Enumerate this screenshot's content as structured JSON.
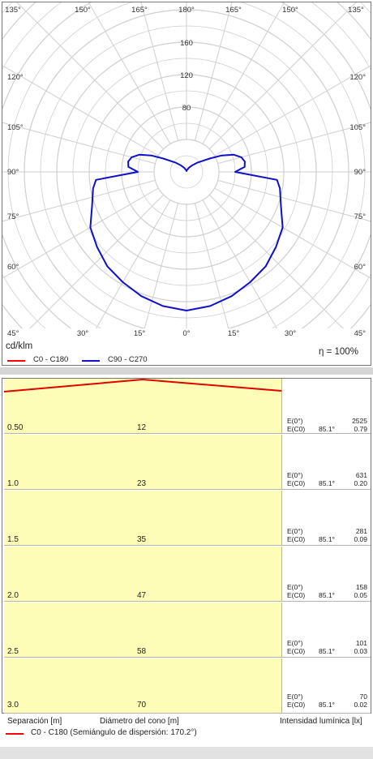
{
  "chart_data": [
    {
      "type": "polar",
      "unit_label": "cd/klm",
      "efficiency_label": "η = 100%",
      "angle_labels_top": [
        "135°",
        "150°",
        "165°",
        "180°",
        "165°",
        "150°",
        "135°"
      ],
      "angle_labels_left": [
        "120°",
        "105°",
        "90°",
        "75°",
        "60°",
        "45°"
      ],
      "angle_labels_right": [
        "120°",
        "105°",
        "90°",
        "75°",
        "60°",
        "45°"
      ],
      "angle_labels_bottom": [
        "30°",
        "15°",
        "0°",
        "15°",
        "30°"
      ],
      "radial_ticks": [
        "160",
        "120",
        "80"
      ],
      "rmax": 200,
      "legend_visible": [
        "C0 - C180",
        "C90 - C270"
      ],
      "series": [
        {
          "name": "C0 - C180",
          "color": "#ff0000",
          "angles_deg": [
            0,
            10,
            20,
            30,
            40,
            50,
            60,
            70,
            80,
            85,
            90,
            95,
            100,
            110,
            120,
            130,
            140,
            150,
            160,
            170,
            180
          ],
          "values": [
            0,
            0,
            0,
            0,
            0,
            0,
            0,
            0,
            0,
            0,
            0,
            0,
            0,
            0,
            0,
            0,
            0,
            0,
            0,
            0,
            0
          ]
        },
        {
          "name": "C90 - C270",
          "color": "#1010c8",
          "angles_deg": [
            0,
            10,
            20,
            30,
            40,
            50,
            60,
            70,
            80,
            85,
            90,
            95,
            100,
            105,
            110,
            115,
            120,
            130,
            140,
            150,
            160,
            170,
            180
          ],
          "values": [
            171,
            168,
            163,
            157,
            152,
            144,
            137,
            124,
            117,
            112,
            60,
            72,
            73,
            70,
            62,
            48,
            33,
            18,
            10,
            6,
            3,
            2,
            1
          ]
        }
      ]
    },
    {
      "type": "table",
      "rows": [
        {
          "separation": "0.50",
          "diameter": "12",
          "e0_label": "E(0°)",
          "ec0_label": "E(C0)",
          "angle": "85.1°",
          "e0_value": "2525",
          "ec0_value": "0.79"
        },
        {
          "separation": "1.0",
          "diameter": "23",
          "e0_label": "E(0°)",
          "ec0_label": "E(C0)",
          "angle": "85.1°",
          "e0_value": "631",
          "ec0_value": "0.20"
        },
        {
          "separation": "1.5",
          "diameter": "35",
          "e0_label": "E(0°)",
          "ec0_label": "E(C0)",
          "angle": "85.1°",
          "e0_value": "281",
          "ec0_value": "0.09"
        },
        {
          "separation": "2.0",
          "diameter": "47",
          "e0_label": "E(0°)",
          "ec0_label": "E(C0)",
          "angle": "85.1°",
          "e0_value": "158",
          "ec0_value": "0.05"
        },
        {
          "separation": "2.5",
          "diameter": "58",
          "e0_label": "E(0°)",
          "ec0_label": "E(C0)",
          "angle": "85.1°",
          "e0_value": "101",
          "ec0_value": "0.03"
        },
        {
          "separation": "3.0",
          "diameter": "70",
          "e0_label": "E(0°)",
          "ec0_label": "E(C0)",
          "angle": "85.1°",
          "e0_value": "70",
          "ec0_value": "0.02"
        }
      ],
      "xlabel_left": "Separación [m]",
      "xlabel_center": "Diámetro del cono [m]",
      "xlabel_right": "Intensidad lumínica [lx]",
      "legend": "C0 - C180 (Semiángulo de dispersión: 170.2°)",
      "legend_color": "#ff0000"
    }
  ]
}
